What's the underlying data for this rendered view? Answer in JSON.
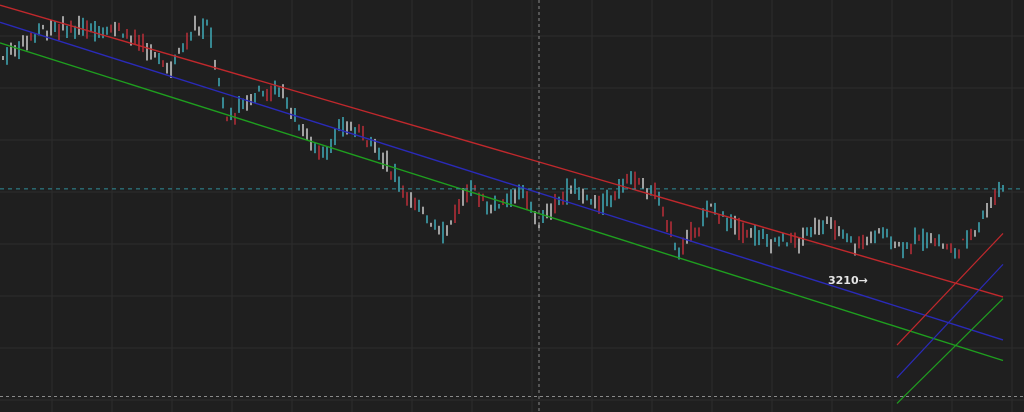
{
  "chart_data": {
    "type": "ohlc",
    "title": "",
    "xlabel": "",
    "ylabel": "",
    "grid": true,
    "theme_colors": {
      "background": "#1f1f1f",
      "grid": "#2c2c2c",
      "up_bar": "#42b6c4",
      "down_bar": "#c6303a",
      "neutral_bar": "#d8d8d8",
      "upper_line": "#c0282c",
      "middle_line": "#2a2ab8",
      "lower_line": "#1f9e1f",
      "crosshair": "#8a8a8a",
      "current_price_line": "#2f8f9a"
    },
    "trend_channel_main": {
      "upper": {
        "start": 3370,
        "end": 3200
      },
      "middle": {
        "start": 3360,
        "end": 3175
      },
      "lower": {
        "start": 3348,
        "end": 3163
      }
    },
    "trend_channel_short": {
      "upper": {
        "start": 3172,
        "end": 3237
      },
      "middle": {
        "start": 3153,
        "end": 3219
      },
      "lower": {
        "start": 3138,
        "end": 3199
      }
    },
    "annotation": {
      "text": "3210→",
      "value": 3210
    },
    "price_levels": {
      "current": 3263,
      "lower_dashed": 3142
    },
    "ylim": [
      3133,
      3373
    ]
  }
}
